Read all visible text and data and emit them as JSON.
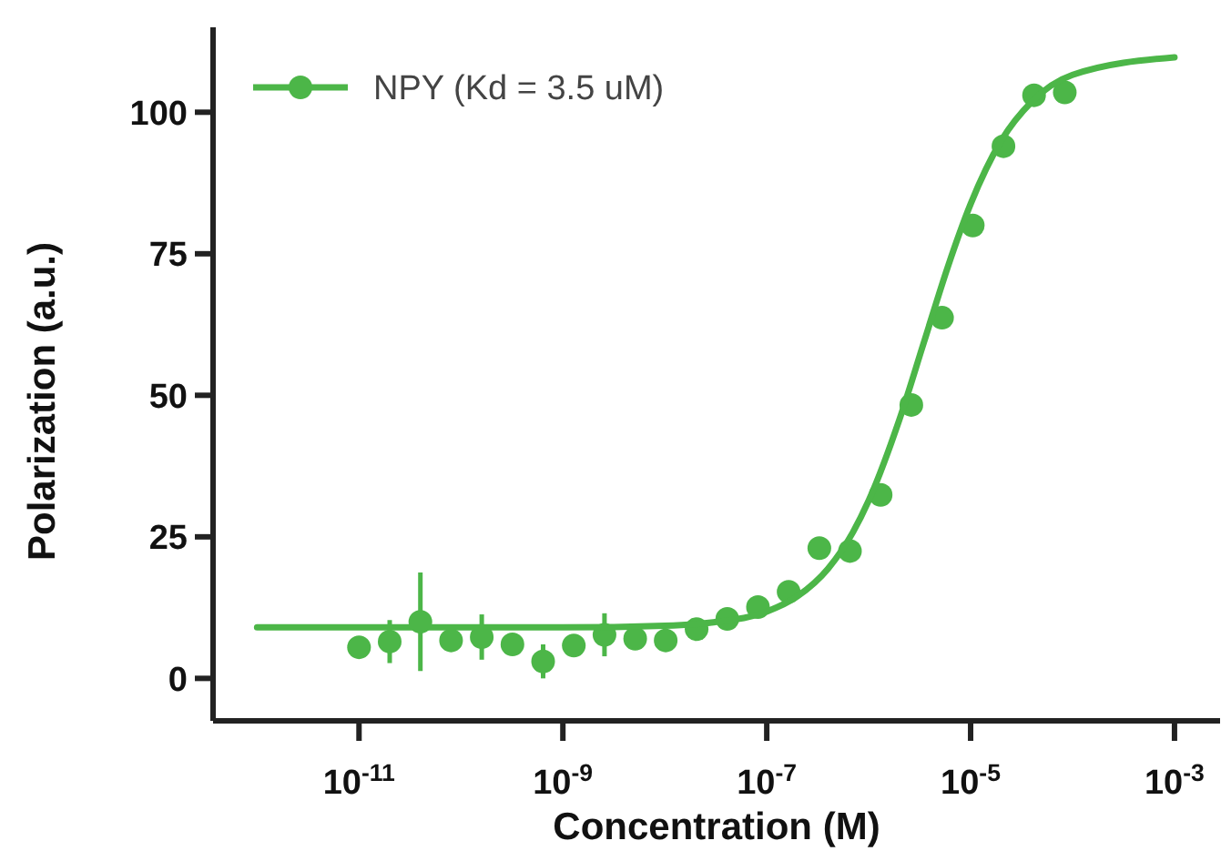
{
  "chart_data": {
    "type": "scatter",
    "xlabel": "Concentration (M)",
    "ylabel": "Polarization (a.u.)",
    "log": "x",
    "xlim": [
      3.7e-13,
      0.0028
    ],
    "ylim": [
      -7.5,
      115
    ],
    "xticks": [
      {
        "value": 1e-11,
        "label": "10$^{-11}$"
      },
      {
        "value": 1e-09,
        "label": "10$^{-9}$"
      },
      {
        "value": 1e-07,
        "label": "10$^{-7}$"
      },
      {
        "value": 1e-05,
        "label": "10$^{-5}$"
      },
      {
        "value": 0.001,
        "label": "10$^{-3}$"
      }
    ],
    "yticks": [
      0,
      25,
      50,
      75,
      100
    ],
    "grid": false,
    "legend": "top left",
    "series": [
      {
        "name": "NPY (Kd = 3.5 uM)",
        "color": "#4cb648",
        "marker": "circle",
        "x": [
          1e-11,
          2e-11,
          4e-11,
          8e-11,
          1.6e-10,
          3.2e-10,
          6.4e-10,
          1.28e-09,
          2.56e-09,
          5.12e-09,
          1.02e-08,
          2.05e-08,
          4.1e-08,
          8.2e-08,
          1.64e-07,
          3.28e-07,
          6.55e-07,
          1.31e-06,
          2.62e-06,
          5.24e-06,
          1.05e-05,
          2.1e-05,
          4.19e-05,
          8.39e-05
        ],
        "values": [
          5.5,
          6.5,
          10,
          6.7,
          7.3,
          6,
          3,
          5.8,
          7.7,
          7,
          6.7,
          8.7,
          10.5,
          12.6,
          15.3,
          23,
          22.5,
          32.4,
          48.3,
          63.7,
          80,
          94,
          103,
          103.5
        ],
        "errors": [
          null,
          3.8,
          8.7,
          null,
          4,
          null,
          3,
          null,
          3.8,
          null,
          null,
          null,
          null,
          null,
          null,
          null,
          null,
          null,
          null,
          null,
          null,
          null,
          null,
          null
        ]
      },
      {
        "color": "#4cb648",
        "type": "line",
        "marker": "none",
        "line_style": "solid",
        "x": [
          1e-12,
          1e-09,
          1e-08,
          3e-08,
          1e-07,
          2e-07,
          4e-07,
          7e-07,
          1e-06,
          2e-06,
          3.5e-06,
          6e-06,
          1e-05,
          2e-05,
          4e-05,
          0.0001,
          0.001
        ],
        "values": [
          9,
          9,
          9.3,
          9.9,
          11.8,
          14.5,
          19.4,
          25.8,
          31.4,
          45.7,
          59.5,
          72.8,
          83.8,
          95,
          101.9,
          106.6,
          109.7
        ]
      }
    ]
  }
}
